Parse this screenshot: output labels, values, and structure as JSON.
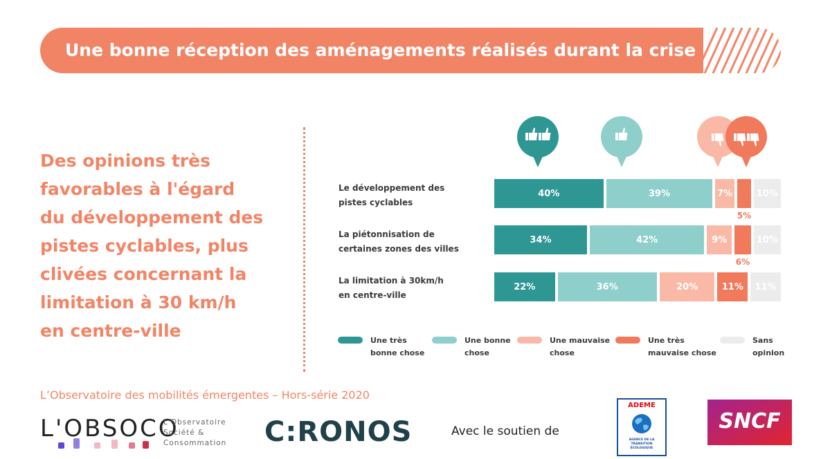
{
  "banner": {
    "title": "Une bonne réception des aménagements réalisés durant la crise"
  },
  "lead": {
    "lines": [
      "Des opinions très",
      "favorables à l'égard",
      "du développement des",
      "pistes cyclables, plus",
      "clivées concernant la",
      "limitation à 30 km/h",
      "en centre-ville"
    ]
  },
  "icons": [
    "double-thumbs-up-icon",
    "thumbs-up-icon",
    "thumbs-down-icon",
    "double-thumbs-down-icon"
  ],
  "chart_data": {
    "type": "bar",
    "orientation": "horizontal",
    "stacked": true,
    "categories": [
      [
        "Le développement des",
        "pistes cyclables"
      ],
      [
        "La piétonnisation de",
        "certaines zones des villes"
      ],
      [
        "La limitation à 30km/h",
        "en centre-ville"
      ]
    ],
    "series": [
      {
        "name": "Une très bonne chose",
        "legend_lines": [
          "Une très",
          "bonne chose"
        ],
        "color": "#2e9793",
        "text_color": "#ffffff",
        "values": [
          40,
          34,
          22
        ],
        "labels": [
          "40%",
          "34%",
          "22%"
        ]
      },
      {
        "name": "Une bonne chose",
        "legend_lines": [
          "Une bonne",
          "chose"
        ],
        "color": "#8ecfcb",
        "text_color": "#ffffff",
        "values": [
          39,
          42,
          36
        ],
        "labels": [
          "39%",
          "42%",
          "36%"
        ]
      },
      {
        "name": "Une mauvaise chose",
        "legend_lines": [
          "Une mauvaise",
          "chose"
        ],
        "color": "#f9b9a6",
        "text_color": "#ffffff",
        "values": [
          7,
          9,
          20
        ],
        "labels": [
          "7%",
          "9%",
          "20%"
        ]
      },
      {
        "name": "Une très mauvaise chose",
        "legend_lines": [
          "Une très",
          "mauvaise chose"
        ],
        "color": "#f07a5b",
        "text_color": "#ffffff",
        "values": [
          5,
          6,
          11
        ],
        "labels": [
          "5%",
          "6%",
          "11%"
        ]
      },
      {
        "name": "Sans opinion",
        "legend_lines": [
          "Sans",
          "opinion"
        ],
        "color": "#ececec",
        "text_color": "#ffffff",
        "values": [
          10,
          10,
          11
        ],
        "labels": [
          "10%",
          "10%",
          "11%"
        ]
      }
    ],
    "unit": "%"
  },
  "footer": {
    "title": "L’Observatoire des mobilités émergentes – Hors-série 2020",
    "obsoco_word": "L'OBSOCO",
    "obsoco_lines": [
      "L'Observatoire",
      "Société &",
      "Consommation"
    ],
    "chronos": "C:RONOS",
    "soutien": "Avec le soutien de",
    "ademe": "ADEME",
    "ademe_lines": [
      "AGENCE DE LA",
      "TRANSITION",
      "ÉCOLOGIQUE"
    ],
    "sncf": "SNCF"
  },
  "colors": {
    "accent": "#f28466",
    "teal_dark": "#2e9793",
    "teal_light": "#8ecfcb",
    "salmon_light": "#f9b9a6",
    "salmon": "#f07a5b",
    "grey": "#ececec"
  }
}
